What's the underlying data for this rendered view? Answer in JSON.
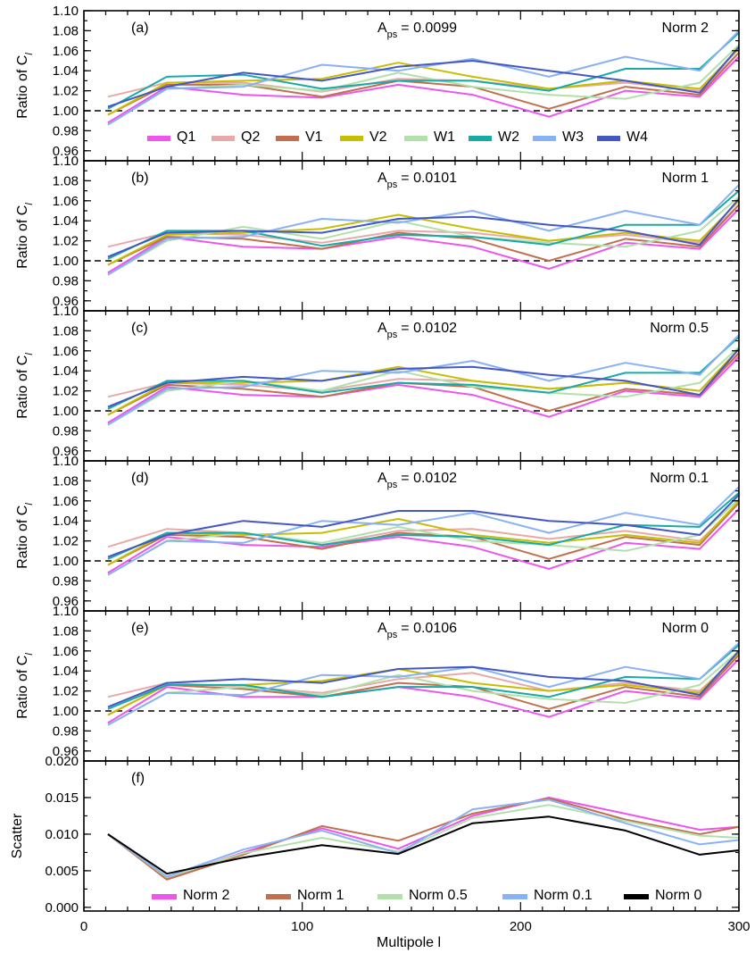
{
  "figure": {
    "xlabel": "Multipole l",
    "x_ticks": [
      0,
      100,
      200,
      300
    ]
  },
  "colors": {
    "Q1": "#ee55ee",
    "Q2": "#e8aaa8",
    "V1": "#c0704e",
    "V2": "#c8be00",
    "W1": "#b2e0aa",
    "W2": "#18aaa6",
    "W3": "#88b2f4",
    "W4": "#4458c4",
    "Norm 2": "#ee55ee",
    "Norm 1": "#c0704e",
    "Norm 0.5": "#b2e0aa",
    "Norm 0.1": "#88b2f4",
    "Norm 0": "#000000"
  },
  "chart_data": [
    {
      "type": "line",
      "panel": "(a)",
      "annotation": "A = 0.0099",
      "amp_label": "A",
      "amp_sub": "ps",
      "amp_value": "= 0.0099",
      "norm": "Norm 2",
      "ylabel": "Ratio of C",
      "ylabel_sub": "l",
      "xlim": [
        0,
        300
      ],
      "ylim": [
        0.95,
        1.1
      ],
      "y_ticks": [
        "0.96",
        "0.98",
        "1.00",
        "1.02",
        "1.04",
        "1.06",
        "1.08",
        "1.10"
      ],
      "reference_line": 1.0,
      "x": [
        11,
        38,
        73,
        109,
        144,
        178,
        213,
        248,
        282,
        300
      ],
      "legend": [
        "Q1",
        "Q2",
        "V1",
        "V2",
        "W1",
        "W2",
        "W3",
        "W4"
      ],
      "series": [
        {
          "name": "Q1",
          "values": [
            0.988,
            1.024,
            1.016,
            1.013,
            1.026,
            1.016,
            0.994,
            1.02,
            1.014,
            1.054
          ]
        },
        {
          "name": "Q2",
          "values": [
            1.014,
            1.028,
            1.028,
            1.019,
            1.032,
            1.03,
            1.022,
            1.028,
            1.02,
            1.058
          ]
        },
        {
          "name": "V1",
          "values": [
            0.996,
            1.026,
            1.026,
            1.014,
            1.03,
            1.024,
            1.002,
            1.024,
            1.016,
            1.058
          ]
        },
        {
          "name": "V2",
          "values": [
            0.996,
            1.028,
            1.03,
            1.032,
            1.048,
            1.034,
            1.022,
            1.03,
            1.022,
            1.062
          ]
        },
        {
          "name": "W1",
          "values": [
            0.986,
            1.022,
            1.026,
            1.02,
            1.038,
            1.024,
            1.016,
            1.012,
            1.028,
            1.066
          ]
        },
        {
          "name": "W2",
          "values": [
            1.002,
            1.034,
            1.036,
            1.022,
            1.03,
            1.03,
            1.02,
            1.042,
            1.042,
            1.078
          ]
        },
        {
          "name": "W3",
          "values": [
            0.986,
            1.022,
            1.024,
            1.046,
            1.04,
            1.052,
            1.034,
            1.054,
            1.04,
            1.08
          ]
        },
        {
          "name": "W4",
          "values": [
            1.004,
            1.024,
            1.038,
            1.03,
            1.044,
            1.05,
            1.04,
            1.03,
            1.018,
            1.064
          ]
        }
      ]
    },
    {
      "type": "line",
      "panel": "(b)",
      "annotation": "A = 0.0101",
      "amp_label": "A",
      "amp_sub": "ps",
      "amp_value": "= 0.0101",
      "norm": "Norm 1",
      "ylabel": "Ratio of C",
      "ylabel_sub": "l",
      "xlim": [
        0,
        300
      ],
      "ylim": [
        0.95,
        1.1
      ],
      "y_ticks": [
        "0.96",
        "0.98",
        "1.00",
        "1.02",
        "1.04",
        "1.06",
        "1.08",
        "1.10"
      ],
      "reference_line": 1.0,
      "x": [
        11,
        38,
        73,
        109,
        144,
        178,
        213,
        248,
        282,
        300
      ],
      "series": [
        {
          "name": "Q1",
          "values": [
            0.988,
            1.024,
            1.014,
            1.012,
            1.024,
            1.014,
            0.992,
            1.018,
            1.012,
            1.052
          ]
        },
        {
          "name": "Q2",
          "values": [
            1.014,
            1.028,
            1.026,
            1.018,
            1.03,
            1.028,
            1.02,
            1.026,
            1.018,
            1.056
          ]
        },
        {
          "name": "V1",
          "values": [
            0.996,
            1.024,
            1.022,
            1.012,
            1.028,
            1.022,
            1.0,
            1.022,
            1.014,
            1.056
          ]
        },
        {
          "name": "V2",
          "values": [
            0.996,
            1.026,
            1.028,
            1.032,
            1.046,
            1.032,
            1.02,
            1.028,
            1.02,
            1.06
          ]
        },
        {
          "name": "W1",
          "values": [
            0.986,
            1.02,
            1.034,
            1.022,
            1.04,
            1.024,
            1.018,
            1.014,
            1.03,
            1.064
          ]
        },
        {
          "name": "W2",
          "values": [
            1.002,
            1.03,
            1.03,
            1.015,
            1.026,
            1.024,
            1.016,
            1.036,
            1.036,
            1.07
          ]
        },
        {
          "name": "W3",
          "values": [
            0.986,
            1.022,
            1.024,
            1.042,
            1.038,
            1.05,
            1.03,
            1.05,
            1.036,
            1.076
          ]
        },
        {
          "name": "W4",
          "values": [
            1.004,
            1.028,
            1.03,
            1.028,
            1.042,
            1.044,
            1.036,
            1.03,
            1.016,
            1.062
          ]
        }
      ]
    },
    {
      "type": "line",
      "panel": "(c)",
      "annotation": "A = 0.0102",
      "amp_label": "A",
      "amp_sub": "ps",
      "amp_value": "= 0.0102",
      "norm": "Norm 0.5",
      "ylabel": "Ratio of C",
      "ylabel_sub": "l",
      "xlim": [
        0,
        300
      ],
      "ylim": [
        0.95,
        1.1
      ],
      "y_ticks": [
        "0.96",
        "0.98",
        "1.00",
        "1.02",
        "1.04",
        "1.06",
        "1.08",
        "1.10"
      ],
      "reference_line": 1.0,
      "x": [
        11,
        38,
        73,
        109,
        144,
        178,
        213,
        248,
        282,
        300
      ],
      "series": [
        {
          "name": "Q1",
          "values": [
            0.988,
            1.024,
            1.016,
            1.014,
            1.026,
            1.016,
            0.994,
            1.02,
            1.014,
            1.054
          ]
        },
        {
          "name": "Q2",
          "values": [
            1.014,
            1.028,
            1.026,
            1.02,
            1.032,
            1.03,
            1.022,
            1.028,
            1.02,
            1.056
          ]
        },
        {
          "name": "V1",
          "values": [
            0.996,
            1.026,
            1.022,
            1.014,
            1.028,
            1.024,
            1.0,
            1.022,
            1.016,
            1.058
          ]
        },
        {
          "name": "V2",
          "values": [
            0.996,
            1.028,
            1.028,
            1.03,
            1.044,
            1.03,
            1.022,
            1.028,
            1.02,
            1.062
          ]
        },
        {
          "name": "W1",
          "values": [
            0.986,
            1.02,
            1.03,
            1.02,
            1.04,
            1.024,
            1.018,
            1.014,
            1.028,
            1.064
          ]
        },
        {
          "name": "W2",
          "values": [
            1.002,
            1.03,
            1.03,
            1.018,
            1.028,
            1.026,
            1.018,
            1.038,
            1.038,
            1.074
          ]
        },
        {
          "name": "W3",
          "values": [
            0.986,
            1.022,
            1.024,
            1.04,
            1.038,
            1.05,
            1.03,
            1.048,
            1.036,
            1.076
          ]
        },
        {
          "name": "W4",
          "values": [
            1.004,
            1.028,
            1.034,
            1.03,
            1.042,
            1.044,
            1.036,
            1.03,
            1.016,
            1.062
          ]
        }
      ]
    },
    {
      "type": "line",
      "panel": "(d)",
      "annotation": "A = 0.0102",
      "amp_label": "A",
      "amp_sub": "ps",
      "amp_value": "= 0.0102",
      "norm": "Norm 0.1",
      "ylabel": "Ratio of C",
      "ylabel_sub": "l",
      "xlim": [
        0,
        300
      ],
      "ylim": [
        0.95,
        1.1
      ],
      "y_ticks": [
        "0.96",
        "0.98",
        "1.00",
        "1.02",
        "1.04",
        "1.06",
        "1.08",
        "1.10"
      ],
      "reference_line": 1.0,
      "x": [
        11,
        38,
        73,
        109,
        144,
        178,
        213,
        248,
        282,
        300
      ],
      "series": [
        {
          "name": "Q1",
          "values": [
            0.988,
            1.024,
            1.016,
            1.014,
            1.024,
            1.014,
            0.992,
            1.018,
            1.012,
            1.052
          ]
        },
        {
          "name": "Q2",
          "values": [
            1.014,
            1.032,
            1.028,
            1.016,
            1.03,
            1.032,
            1.022,
            1.03,
            1.02,
            1.058
          ]
        },
        {
          "name": "V1",
          "values": [
            0.996,
            1.026,
            1.024,
            1.012,
            1.028,
            1.024,
            1.002,
            1.024,
            1.016,
            1.058
          ]
        },
        {
          "name": "V2",
          "values": [
            0.996,
            1.028,
            1.026,
            1.028,
            1.042,
            1.026,
            1.018,
            1.026,
            1.018,
            1.06
          ]
        },
        {
          "name": "W1",
          "values": [
            0.986,
            1.02,
            1.028,
            1.018,
            1.034,
            1.02,
            1.016,
            1.01,
            1.026,
            1.062
          ]
        },
        {
          "name": "W2",
          "values": [
            1.002,
            1.028,
            1.028,
            1.016,
            1.026,
            1.024,
            1.016,
            1.036,
            1.034,
            1.068
          ]
        },
        {
          "name": "W3",
          "values": [
            0.986,
            1.02,
            1.018,
            1.04,
            1.036,
            1.048,
            1.028,
            1.048,
            1.036,
            1.074
          ]
        },
        {
          "name": "W4",
          "values": [
            1.004,
            1.026,
            1.04,
            1.034,
            1.05,
            1.05,
            1.04,
            1.036,
            1.026,
            1.066
          ]
        }
      ]
    },
    {
      "type": "line",
      "panel": "(e)",
      "annotation": "A = 0.0106",
      "amp_label": "A",
      "amp_sub": "ps",
      "amp_value": "= 0.0106",
      "norm": "Norm 0",
      "ylabel": "Ratio of C",
      "ylabel_sub": "l",
      "xlim": [
        0,
        300
      ],
      "ylim": [
        0.95,
        1.1
      ],
      "y_ticks": [
        "0.96",
        "0.98",
        "1.00",
        "1.02",
        "1.04",
        "1.06",
        "1.08",
        "1.10"
      ],
      "reference_line": 1.0,
      "x": [
        11,
        38,
        73,
        109,
        144,
        178,
        213,
        248,
        282,
        300
      ],
      "series": [
        {
          "name": "Q1",
          "values": [
            0.988,
            1.024,
            1.014,
            1.014,
            1.024,
            1.014,
            0.994,
            1.02,
            1.012,
            1.052
          ]
        },
        {
          "name": "Q2",
          "values": [
            1.014,
            1.028,
            1.024,
            1.018,
            1.032,
            1.038,
            1.02,
            1.028,
            1.02,
            1.056
          ]
        },
        {
          "name": "V1",
          "values": [
            0.996,
            1.026,
            1.022,
            1.014,
            1.028,
            1.024,
            1.002,
            1.024,
            1.014,
            1.056
          ]
        },
        {
          "name": "V2",
          "values": [
            0.996,
            1.026,
            1.026,
            1.03,
            1.042,
            1.028,
            1.02,
            1.026,
            1.018,
            1.058
          ]
        },
        {
          "name": "W1",
          "values": [
            0.986,
            1.018,
            1.024,
            1.016,
            1.036,
            1.02,
            1.012,
            1.008,
            1.026,
            1.06
          ]
        },
        {
          "name": "W2",
          "values": [
            1.002,
            1.026,
            1.026,
            1.014,
            1.024,
            1.024,
            1.014,
            1.034,
            1.032,
            1.066
          ]
        },
        {
          "name": "W3",
          "values": [
            0.986,
            1.018,
            1.016,
            1.036,
            1.034,
            1.044,
            1.024,
            1.044,
            1.032,
            1.068
          ]
        },
        {
          "name": "W4",
          "values": [
            1.004,
            1.028,
            1.032,
            1.028,
            1.042,
            1.044,
            1.034,
            1.03,
            1.016,
            1.06
          ]
        }
      ]
    },
    {
      "type": "line",
      "panel": "(f)",
      "norm": "",
      "ylabel": "Scatter",
      "xlim": [
        0,
        300
      ],
      "ylim": [
        -0.0005,
        0.02
      ],
      "y_ticks": [
        "0.000",
        "0.005",
        "0.010",
        "0.015",
        "0.020"
      ],
      "x": [
        11,
        38,
        73,
        109,
        144,
        178,
        213,
        248,
        282,
        300
      ],
      "legend": [
        "Norm 2",
        "Norm 1",
        "Norm 0.5",
        "Norm 0.1",
        "Norm 0"
      ],
      "series": [
        {
          "name": "Norm 2",
          "values": [
            0.01,
            0.004,
            0.0075,
            0.0108,
            0.008,
            0.0125,
            0.015,
            0.0128,
            0.0106,
            0.011
          ]
        },
        {
          "name": "Norm 1",
          "values": [
            0.01,
            0.0038,
            0.0072,
            0.0111,
            0.0091,
            0.0128,
            0.0149,
            0.012,
            0.01,
            0.011
          ]
        },
        {
          "name": "Norm 0.5",
          "values": [
            0.01,
            0.0041,
            0.0074,
            0.0095,
            0.0076,
            0.0122,
            0.014,
            0.0118,
            0.0098,
            0.0095
          ]
        },
        {
          "name": "Norm 0.1",
          "values": [
            0.01,
            0.0042,
            0.0079,
            0.0105,
            0.0074,
            0.0134,
            0.0147,
            0.0115,
            0.0086,
            0.0092
          ]
        },
        {
          "name": "Norm 0",
          "values": [
            0.01,
            0.0046,
            0.0068,
            0.0085,
            0.0073,
            0.0115,
            0.0124,
            0.0105,
            0.0072,
            0.0078
          ]
        }
      ]
    }
  ]
}
